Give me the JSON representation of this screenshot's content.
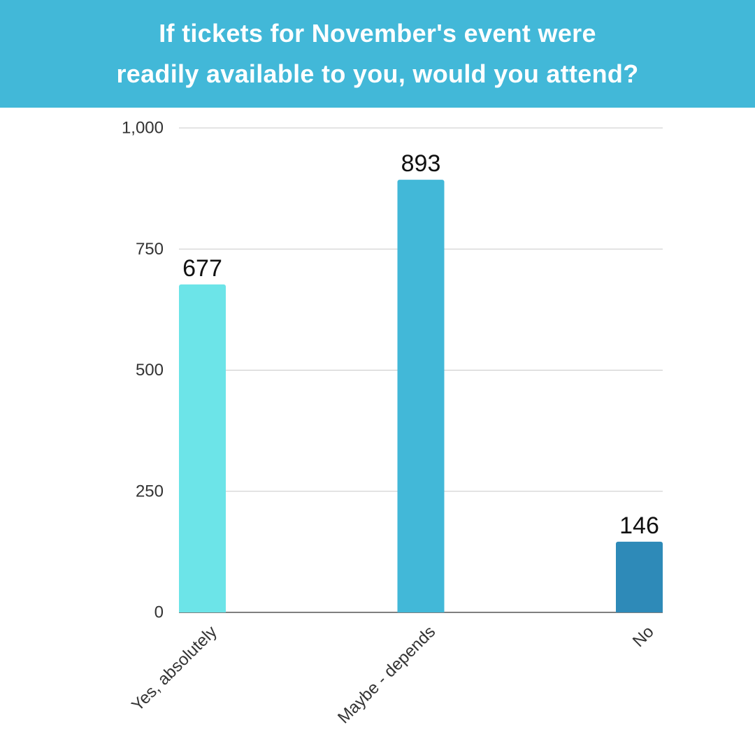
{
  "header": {
    "title_line1": "If tickets for November's event were",
    "title_line2": "readily available to you, would you attend?"
  },
  "colors": {
    "header_bg": "#42b8d8",
    "bar_colors": [
      "#6ce4e8",
      "#42b8d8",
      "#2e8ab8"
    ]
  },
  "chart_data": {
    "type": "bar",
    "title": "If tickets for November's event were readily available to you, would you attend?",
    "categories": [
      "Yes, absolutely",
      "Maybe - depends",
      "No"
    ],
    "values": [
      677,
      893,
      146
    ],
    "data_labels": [
      "677",
      "893",
      "146"
    ],
    "ylim": [
      0,
      1000
    ],
    "yticks": [
      0,
      250,
      500,
      750,
      1000
    ],
    "ytick_labels": [
      "0",
      "250",
      "500",
      "750",
      "1,000"
    ],
    "xlabel": "",
    "ylabel": "",
    "grid": true,
    "legend": "none"
  }
}
